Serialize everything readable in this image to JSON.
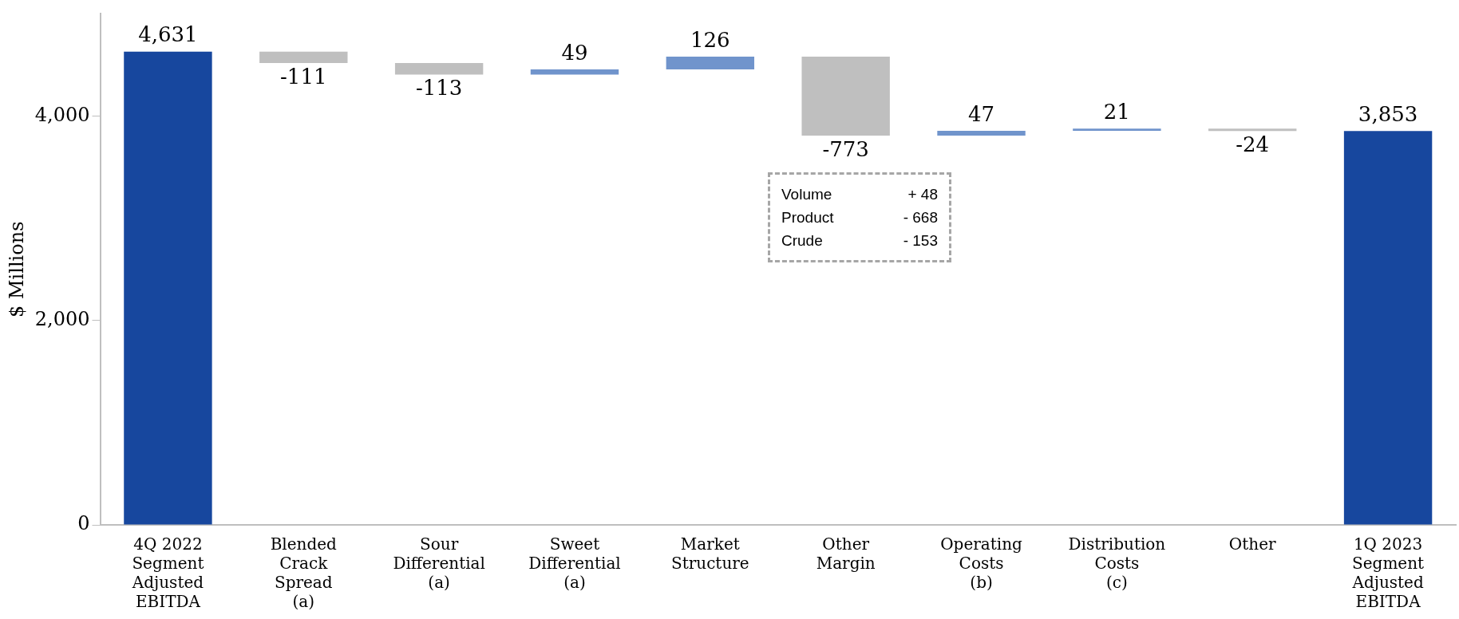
{
  "chart_data": {
    "type": "bar",
    "ylabel": "$ Millions",
    "categories": [
      "4Q 2022 Segment Adjusted EBITDA",
      "Blended Crack Spread (a)",
      "Sour Differential (a)",
      "Sweet Differential (a)",
      "Market Structure",
      "Other Margin",
      "Operating Costs (b)",
      "Distribution Costs (c)",
      "Other",
      "1Q 2023 Segment Adjusted EBITDA"
    ],
    "values": [
      4631,
      -111,
      -113,
      49,
      126,
      -773,
      47,
      21,
      -24,
      3853
    ],
    "base": [
      0,
      4631,
      4520,
      4407,
      4456,
      4582,
      3809,
      3856,
      3877,
      0
    ],
    "colors": [
      "#17479e",
      "#bfbfbf",
      "#bfbfbf",
      "#7094cc",
      "#7094cc",
      "#bfbfbf",
      "#7094cc",
      "#7094cc",
      "#bfbfbf",
      "#17479e"
    ],
    "value_labels": [
      "4,631",
      "-111",
      "-113",
      "49",
      "126",
      "-773",
      "47",
      "21",
      "-24",
      "3,853"
    ],
    "ylim": [
      0,
      5000
    ],
    "yticks": [
      0,
      {
        "value": 2000,
        "label": "2,000"
      },
      {
        "value": 4000,
        "label": "4,000"
      }
    ],
    "annotations": [
      "Volume + 48",
      "Product - 668",
      "Crude - 153"
    ]
  }
}
